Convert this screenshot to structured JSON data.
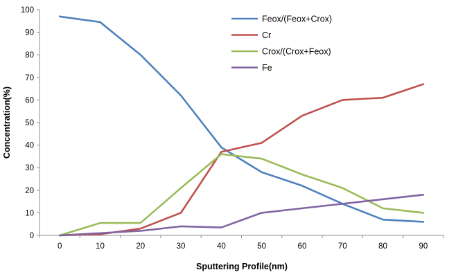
{
  "chart_data": {
    "type": "line",
    "title": "",
    "xlabel": "Sputtering Profile(nm)",
    "ylabel": "Concentration(%)",
    "x": [
      0,
      10,
      20,
      30,
      40,
      50,
      60,
      70,
      80,
      90
    ],
    "ylim": [
      0,
      100
    ],
    "ytick_step": 10,
    "grid": false,
    "legend_position": "top-right-inside",
    "axis_color": "#8c8c8c",
    "series": [
      {
        "name": "Feox/(Feox+Crox)",
        "color": "#4f81bd",
        "values": [
          97,
          94.5,
          80,
          62,
          39,
          28,
          22,
          14,
          7,
          6
        ]
      },
      {
        "name": "Cr",
        "color": "#c0504d",
        "values": [
          0,
          0.5,
          3,
          10,
          37,
          41,
          53,
          60,
          61,
          67
        ]
      },
      {
        "name": "Crox/(Crox+Feox)",
        "color": "#9bbb59",
        "values": [
          0,
          5.5,
          5.5,
          21,
          36,
          34,
          27,
          21,
          12,
          10
        ]
      },
      {
        "name": "Fe",
        "color": "#8064a2",
        "values": [
          0,
          1,
          2,
          4,
          3.5,
          10,
          12,
          14,
          16,
          18
        ]
      }
    ]
  }
}
